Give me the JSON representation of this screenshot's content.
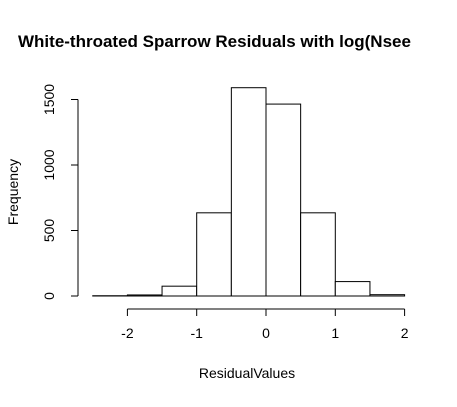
{
  "chart_data": {
    "type": "bar",
    "title": "White-throated Sparrow Residuals with log(Nsee",
    "xlabel": "ResidualValues",
    "ylabel": "Frequency",
    "bins": [
      {
        "from": -2.5,
        "to": -2.0,
        "count": 2
      },
      {
        "from": -2.0,
        "to": -1.5,
        "count": 8
      },
      {
        "from": -1.5,
        "to": -1.0,
        "count": 75
      },
      {
        "from": -1.0,
        "to": -0.5,
        "count": 635
      },
      {
        "from": -0.5,
        "to": 0.0,
        "count": 1590
      },
      {
        "from": 0.0,
        "to": 0.5,
        "count": 1465
      },
      {
        "from": 0.5,
        "to": 1.0,
        "count": 635
      },
      {
        "from": 1.0,
        "to": 1.5,
        "count": 110
      },
      {
        "from": 1.5,
        "to": 2.0,
        "count": 10
      }
    ],
    "xlim": [
      -2.5,
      2.0
    ],
    "ylim": [
      0,
      1600
    ],
    "x_ticks": [
      -2,
      -1,
      0,
      1,
      2
    ],
    "x_tick_labels": [
      "-2",
      "-1",
      "0",
      "1",
      "2"
    ],
    "y_ticks": [
      0,
      500,
      1000,
      1500
    ],
    "y_tick_labels": [
      "0",
      "500",
      "1000",
      "1500"
    ],
    "bar_fill": "#ffffff",
    "bar_stroke": "#000000",
    "grid": false,
    "legend": "none"
  }
}
